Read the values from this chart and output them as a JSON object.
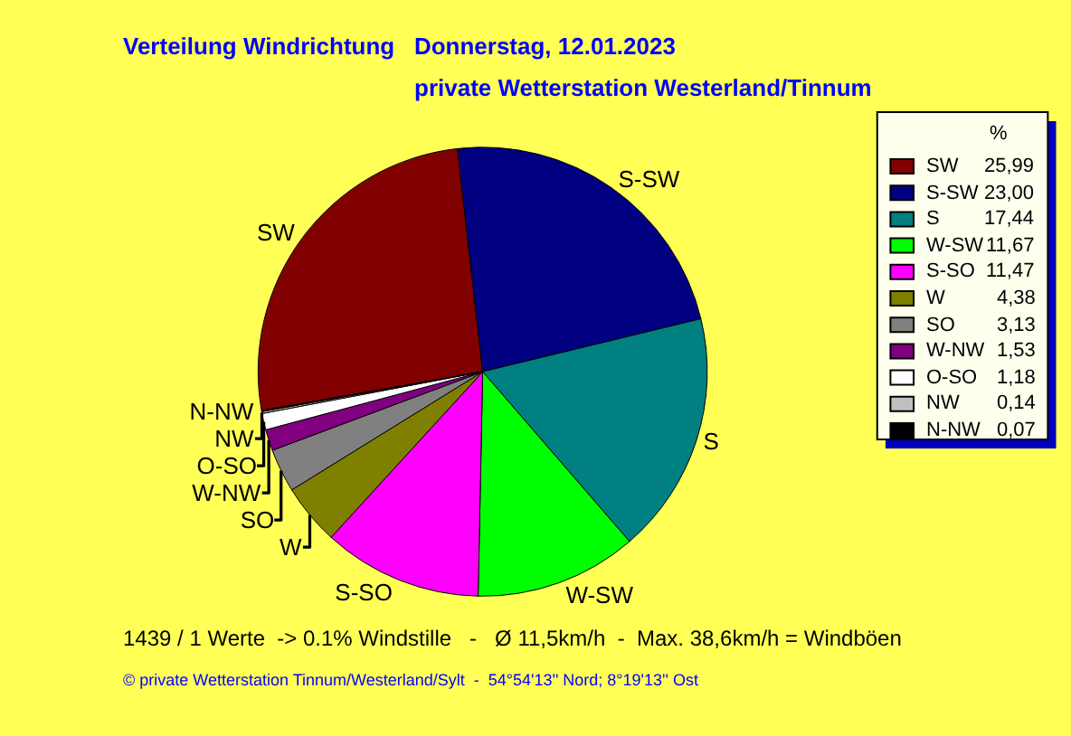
{
  "chart_data": {
    "type": "pie",
    "title": "Verteilung Windrichtung   Donnerstag, 12.01.2023",
    "subtitle": "private Wetterstation Westerland/Tinnum",
    "legend_title": "%",
    "legend": "right",
    "categories": [
      "SW",
      "S-SW",
      "S",
      "W-SW",
      "S-SO",
      "W",
      "SO",
      "W-NW",
      "O-SO",
      "NW",
      "N-NW"
    ],
    "values": [
      25.99,
      23.0,
      17.44,
      11.67,
      11.47,
      4.38,
      3.13,
      1.53,
      1.18,
      0.14,
      0.07
    ],
    "value_labels": [
      "25,99",
      "23,00",
      "17,44",
      "11,67",
      "11,47",
      "4,38",
      "3,13",
      "1,53",
      "1,18",
      "0,14",
      "0,07"
    ],
    "colors": [
      "#800000",
      "#000080",
      "#008080",
      "#00ff00",
      "#ff00ff",
      "#808000",
      "#808080",
      "#800080",
      "#ffffff",
      "#c0c0c0",
      "#000000"
    ],
    "annotations": [
      "1439 / 1 Werte  -> 0.1% Windstille   -   Ø 11,5km/h  -  Max. 38,6km/h = Windböen",
      "© private Wetterstation Tinnum/Westerland/Sylt  -  54°54'13'' Nord; 8°19'13'' Ost"
    ]
  }
}
